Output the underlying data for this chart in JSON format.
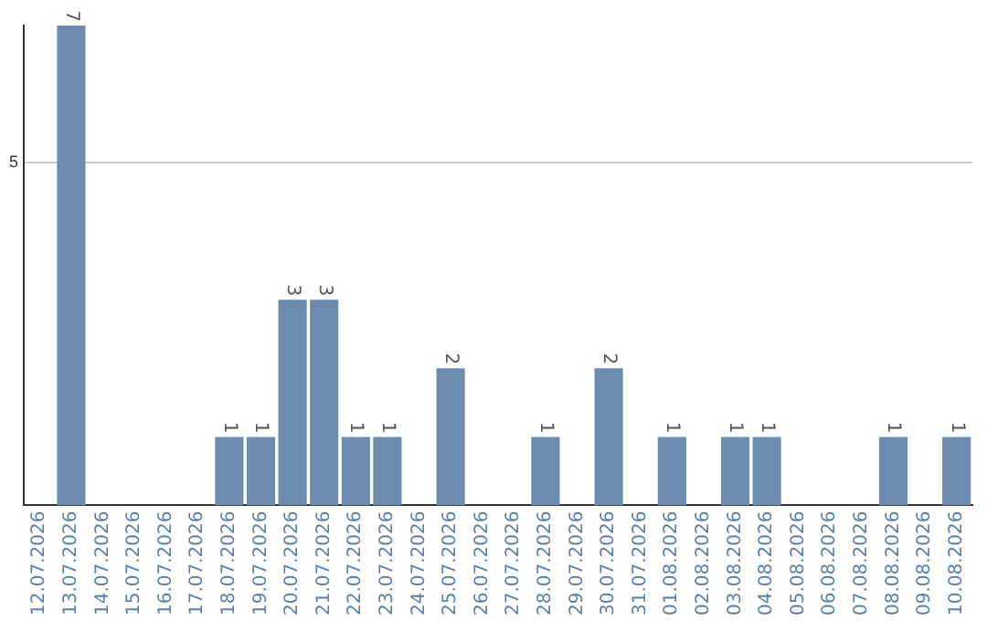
{
  "chart_data": {
    "type": "bar",
    "categories": [
      "12.07.2026",
      "13.07.2026",
      "14.07.2026",
      "15.07.2026",
      "16.07.2026",
      "17.07.2026",
      "18.07.2026",
      "19.07.2026",
      "20.07.2026",
      "21.07.2026",
      "22.07.2026",
      "23.07.2026",
      "24.07.2026",
      "25.07.2026",
      "26.07.2026",
      "27.07.2026",
      "28.07.2026",
      "29.07.2026",
      "30.07.2026",
      "31.07.2026",
      "01.08.2026",
      "02.08.2026",
      "03.08.2026",
      "04.08.2026",
      "05.08.2026",
      "06.08.2026",
      "07.08.2026",
      "08.08.2026",
      "09.08.2026",
      "10.08.2026"
    ],
    "values": [
      0,
      7,
      0,
      0,
      0,
      0,
      1,
      1,
      3,
      3,
      1,
      1,
      0,
      2,
      0,
      0,
      1,
      0,
      2,
      0,
      1,
      0,
      1,
      1,
      0,
      0,
      0,
      1,
      0,
      1
    ],
    "value_labels": [
      null,
      "7",
      null,
      null,
      null,
      null,
      "1",
      "1",
      "3",
      "3",
      "1",
      "1",
      null,
      "2",
      null,
      null,
      "1",
      null,
      "2",
      null,
      "1",
      null,
      "1",
      "1",
      null,
      null,
      null,
      "1",
      null,
      "1"
    ],
    "color": "#6b8cae",
    "ylim": [
      0,
      7
    ],
    "yticks": [
      5
    ],
    "grid": "y"
  }
}
